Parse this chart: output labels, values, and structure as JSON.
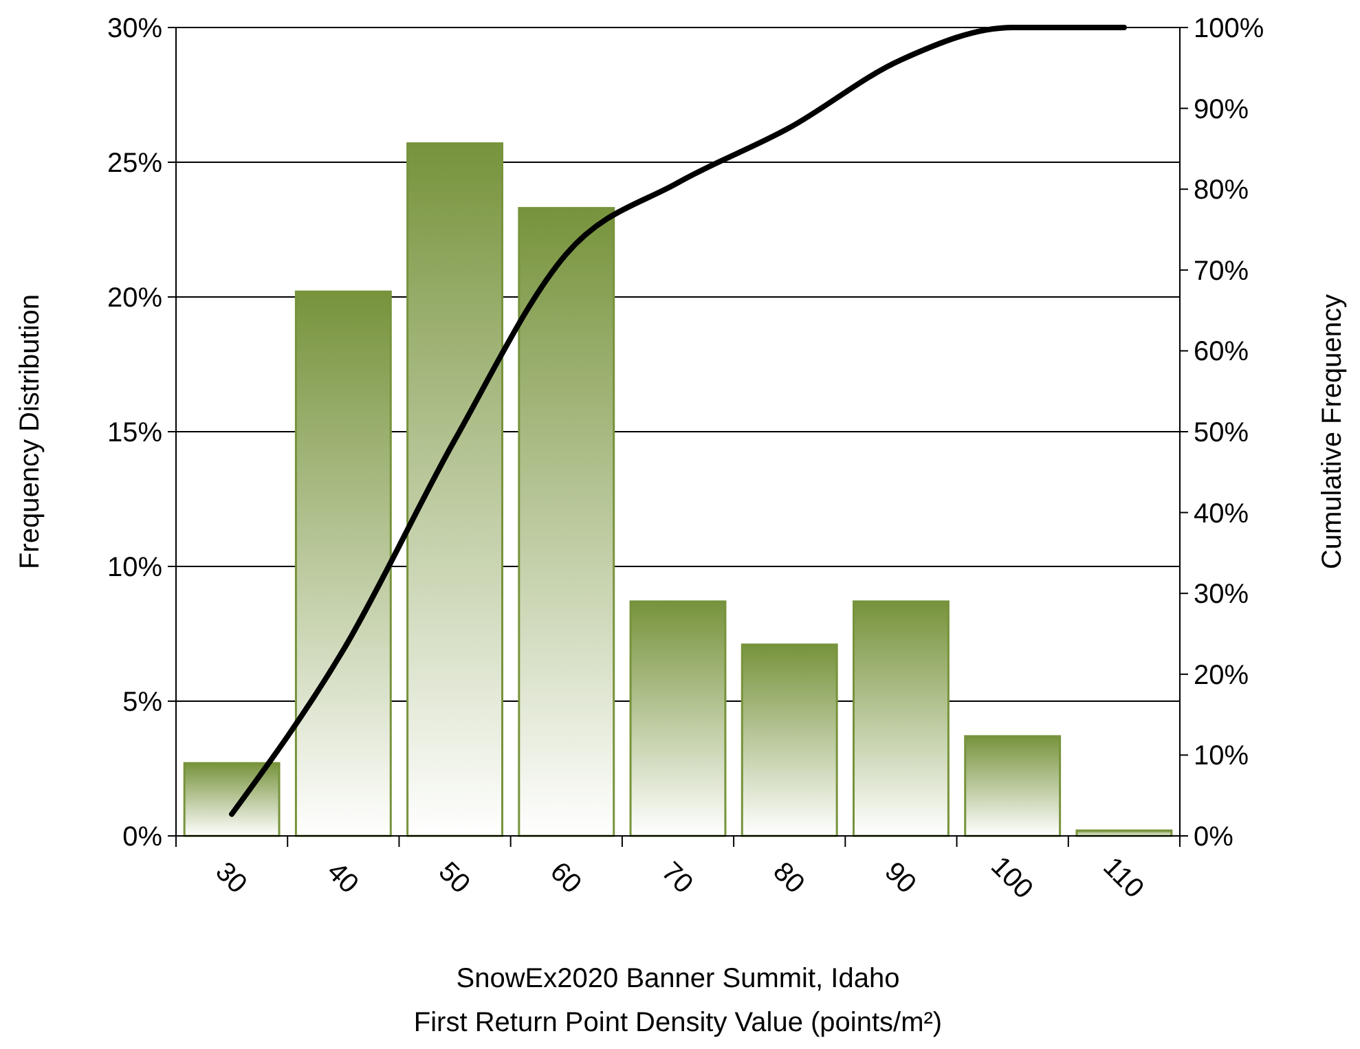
{
  "chart_data": {
    "type": "bar",
    "xlabel": "SnowEx2020 Banner Summit, Idaho\nFirst Return Point Density Value (points/m²)",
    "ylabel": "Frequency Distribution",
    "y2label": "Cumulative Frequency",
    "categories": [
      "30",
      "40",
      "50",
      "60",
      "70",
      "80",
      "90",
      "100",
      "110"
    ],
    "series": [
      {
        "color": "#77933c",
        "values": [
          2.7,
          20.2,
          25.7,
          23.3,
          8.7,
          7.1,
          8.7,
          3.7,
          0.2
        ]
      },
      {
        "type": "line",
        "axis": "y2",
        "color": "#000000",
        "values": [
          2.7,
          23,
          49,
          72,
          80.8,
          87.6,
          96,
          100,
          100
        ]
      }
    ],
    "ylim": [
      0,
      30
    ],
    "yticks": [
      {
        "value": 0,
        "label": "0%"
      },
      {
        "value": 5,
        "label": "5%"
      },
      {
        "value": 10,
        "label": "10%"
      },
      {
        "value": 15,
        "label": "15%"
      },
      {
        "value": 20,
        "label": "20%"
      },
      {
        "value": 25,
        "label": "25%"
      },
      {
        "value": 30,
        "label": "30%"
      }
    ],
    "y2lim": [
      0,
      100
    ],
    "y2ticks": [
      {
        "value": 0,
        "label": "0%"
      },
      {
        "value": 10,
        "label": "10%"
      },
      {
        "value": 20,
        "label": "20%"
      },
      {
        "value": 30,
        "label": "30%"
      },
      {
        "value": 40,
        "label": "40%"
      },
      {
        "value": 50,
        "label": "50%"
      },
      {
        "value": 60,
        "label": "60%"
      },
      {
        "value": 70,
        "label": "70%"
      },
      {
        "value": 80,
        "label": "80%"
      },
      {
        "value": 90,
        "label": "90%"
      },
      {
        "value": 100,
        "label": "100%"
      }
    ],
    "grid": "y",
    "marker": "none",
    "line_style": "solid"
  }
}
